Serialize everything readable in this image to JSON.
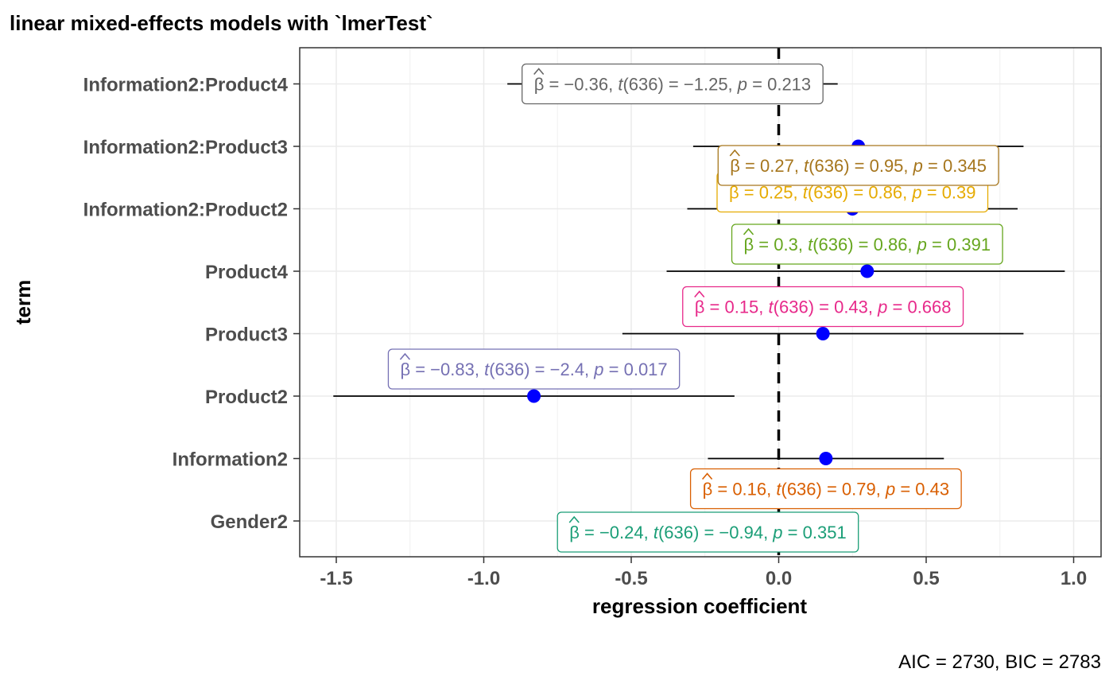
{
  "chart_data": {
    "type": "scatter",
    "title": "linear mixed-effects models with `lmerTest`",
    "xlabel": "regression coefficient",
    "ylabel": "term",
    "caption": "AIC = 2730, BIC = 2783",
    "xlim": [
      -1.62,
      1.1
    ],
    "x_ticks": [
      "-1.5",
      "-1.0",
      "-0.5",
      "0.0",
      "0.5",
      "1.0"
    ],
    "x_tick_values": [
      -1.5,
      -1.0,
      -0.5,
      0.0,
      0.5,
      1.0
    ],
    "grid": true,
    "reference_line": 0,
    "point_color": "#0000ff",
    "terms": [
      {
        "term": "Gender2",
        "estimate": -0.24,
        "conf_low": -0.75,
        "conf_high": 0.27,
        "label": {
          "beta": "−0.24",
          "t": "−0.94",
          "p": "0.351"
        },
        "color": "#1b9e77",
        "label_pos": "below"
      },
      {
        "term": "Information2",
        "estimate": 0.16,
        "conf_low": -0.24,
        "conf_high": 0.56,
        "label": {
          "beta": "0.16",
          "t": "0.79",
          "p": "0.43"
        },
        "color": "#d95f02",
        "label_pos": "below"
      },
      {
        "term": "Product2",
        "estimate": -0.83,
        "conf_low": -1.51,
        "conf_high": -0.15,
        "label": {
          "beta": "−0.83",
          "t": "−2.4",
          "p": "0.017"
        },
        "color": "#7570b3",
        "label_pos": "above"
      },
      {
        "term": "Product3",
        "estimate": 0.15,
        "conf_low": -0.53,
        "conf_high": 0.83,
        "label": {
          "beta": "0.15",
          "t": "0.43",
          "p": "0.668"
        },
        "color": "#e7298a",
        "label_pos": "above"
      },
      {
        "term": "Product4",
        "estimate": 0.3,
        "conf_low": -0.38,
        "conf_high": 0.97,
        "label": {
          "beta": "0.3",
          "t": "0.86",
          "p": "0.391"
        },
        "color": "#66a61e",
        "label_pos": "above"
      },
      {
        "term": "Information2:Product2",
        "estimate": 0.25,
        "conf_low": -0.31,
        "conf_high": 0.81,
        "label": {
          "beta": "0.25",
          "t": "0.86",
          "p": "0.39"
        },
        "color": "#e6ab02",
        "label_pos": "above"
      },
      {
        "term": "Information2:Product3",
        "estimate": 0.27,
        "conf_low": -0.29,
        "conf_high": 0.83,
        "label": {
          "beta": "0.27",
          "t": "0.95",
          "p": "0.345"
        },
        "color": "#a6761d",
        "label_pos": "below"
      },
      {
        "term": "Information2:Product4",
        "estimate": -0.36,
        "conf_low": -0.92,
        "conf_high": 0.2,
        "label": {
          "beta": "−0.36",
          "t": "−1.25",
          "p": "0.213"
        },
        "color": "#666666",
        "label_pos": "center"
      }
    ]
  }
}
